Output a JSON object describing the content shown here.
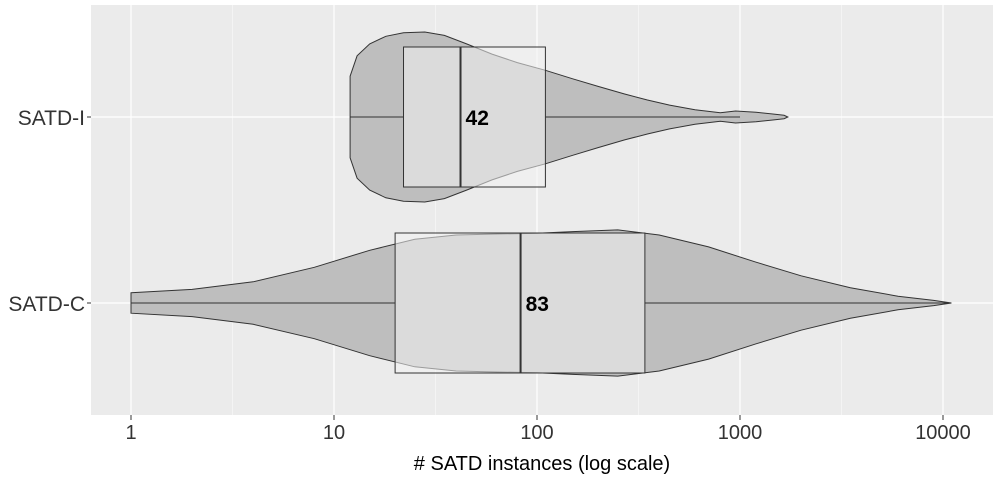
{
  "chart_data": {
    "type": "violin-box",
    "x_scale": "log10",
    "xlim": [
      0.62,
      14000
    ],
    "x_ticks": [
      1,
      10,
      100,
      1000,
      10000
    ],
    "x_tick_labels": [
      "1",
      "10",
      "100",
      "1000",
      "10000"
    ],
    "xlabel": "# SATD instances (log scale)",
    "ylabel": "",
    "grid": true,
    "colors": {
      "panel_bg": "#ebebeb",
      "grid_major": "#ffffff",
      "violin_fill": "#bebebe",
      "box_fill": "#f2f2f2",
      "outline": "#333333"
    },
    "series": [
      {
        "name": "SATD-I",
        "min": 12,
        "q1": 22,
        "median": 42,
        "q3": 110,
        "whisker_high": 1000,
        "max": 1700,
        "median_label": "42",
        "density": [
          [
            12,
            0.48
          ],
          [
            13,
            0.72
          ],
          [
            15,
            0.86
          ],
          [
            18,
            0.95
          ],
          [
            22,
            0.99
          ],
          [
            28,
            1.0
          ],
          [
            35,
            0.96
          ],
          [
            45,
            0.86
          ],
          [
            60,
            0.74
          ],
          [
            80,
            0.64
          ],
          [
            110,
            0.55
          ],
          [
            150,
            0.45
          ],
          [
            200,
            0.36
          ],
          [
            270,
            0.27
          ],
          [
            350,
            0.2
          ],
          [
            450,
            0.14
          ],
          [
            600,
            0.085
          ],
          [
            800,
            0.05
          ],
          [
            950,
            0.07
          ],
          [
            1200,
            0.055
          ],
          [
            1450,
            0.035
          ],
          [
            1650,
            0.02
          ],
          [
            1720,
            0.0
          ]
        ]
      },
      {
        "name": "SATD-C",
        "min": 1,
        "q1": 20,
        "median": 83,
        "q3": 340,
        "whisker_high": 11000,
        "max": 11000,
        "median_label": "83",
        "density": [
          [
            1,
            0.12
          ],
          [
            2,
            0.16
          ],
          [
            4,
            0.25
          ],
          [
            8,
            0.42
          ],
          [
            15,
            0.62
          ],
          [
            25,
            0.75
          ],
          [
            40,
            0.8
          ],
          [
            60,
            0.81
          ],
          [
            100,
            0.82
          ],
          [
            150,
            0.84
          ],
          [
            250,
            0.86
          ],
          [
            400,
            0.8
          ],
          [
            700,
            0.66
          ],
          [
            1200,
            0.48
          ],
          [
            2000,
            0.32
          ],
          [
            3500,
            0.18
          ],
          [
            6000,
            0.08
          ],
          [
            9000,
            0.03
          ],
          [
            11000,
            0.0
          ]
        ]
      }
    ]
  }
}
